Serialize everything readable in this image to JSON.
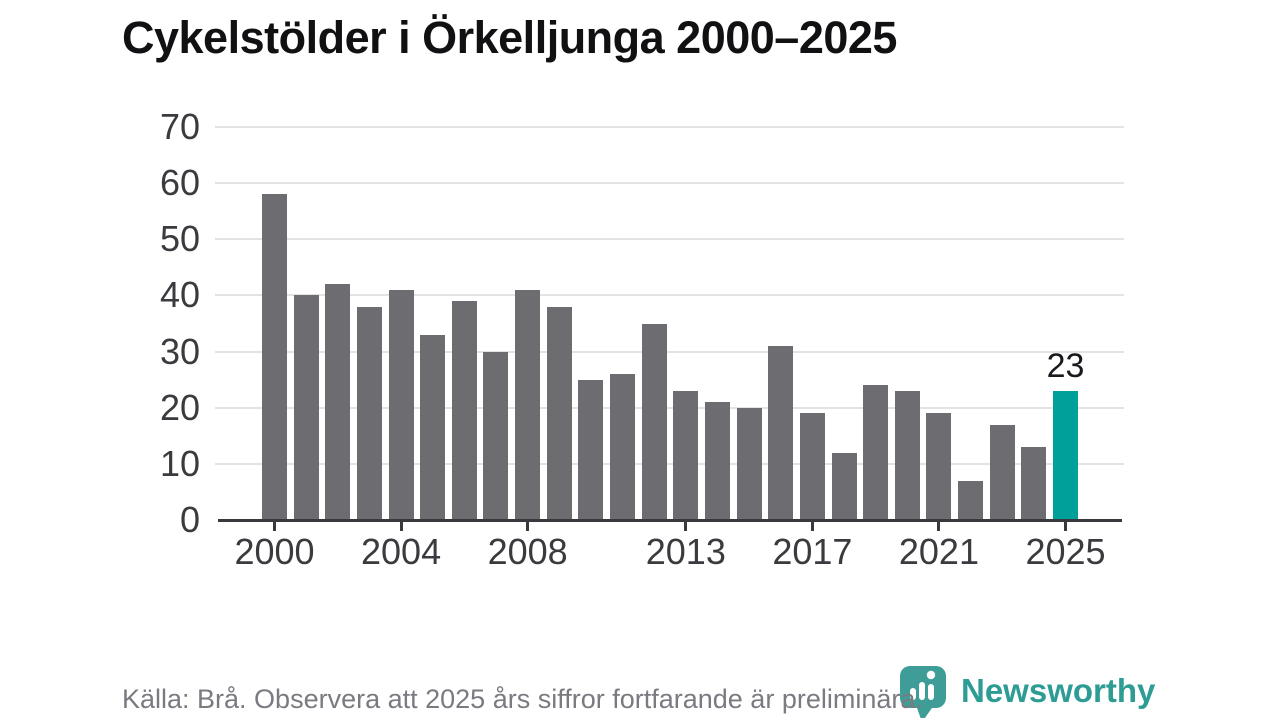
{
  "title": "Cykelstölder i Örkelljunga 2000–2025",
  "source_note": "Källa: Brå. Observera att 2025 års siffror fortfarande är preliminära.",
  "branding": {
    "name": "Newsworthy",
    "icon": "newsworthy-speech-bubble-bar-chart-icon"
  },
  "colors": {
    "bar": "#6c6c71",
    "highlight": "#00a09a",
    "axis": "#38383d",
    "gridline": "#e3e3e3",
    "title_text": "#111114",
    "tick_text": "#3a3a3f",
    "source_text": "#7a7a80",
    "brand_teal": "#2d9c95",
    "value_label_text": "#18181d"
  },
  "chart_data": {
    "type": "bar",
    "title": "Cykelstölder i Örkelljunga 2000–2025",
    "xlabel": "",
    "ylabel": "",
    "x": [
      2000,
      2001,
      2002,
      2003,
      2004,
      2005,
      2006,
      2007,
      2008,
      2009,
      2010,
      2011,
      2012,
      2013,
      2014,
      2015,
      2016,
      2017,
      2018,
      2019,
      2020,
      2021,
      2022,
      2023,
      2024,
      2025
    ],
    "values": [
      58,
      40,
      42,
      38,
      41,
      33,
      39,
      30,
      41,
      38,
      25,
      26,
      35,
      23,
      21,
      20,
      31,
      19,
      12,
      24,
      23,
      19,
      7,
      17,
      13,
      23
    ],
    "highlight_year": 2025,
    "labeled_points": [
      {
        "year": 2025,
        "label": "23"
      }
    ],
    "x_tick_years": [
      2000,
      2004,
      2008,
      2013,
      2017,
      2021,
      2025
    ],
    "y_ticks": [
      0,
      10,
      20,
      30,
      40,
      50,
      60,
      70
    ],
    "ylim": [
      0,
      70
    ],
    "grid": "horizontal-only",
    "legend": "none"
  }
}
